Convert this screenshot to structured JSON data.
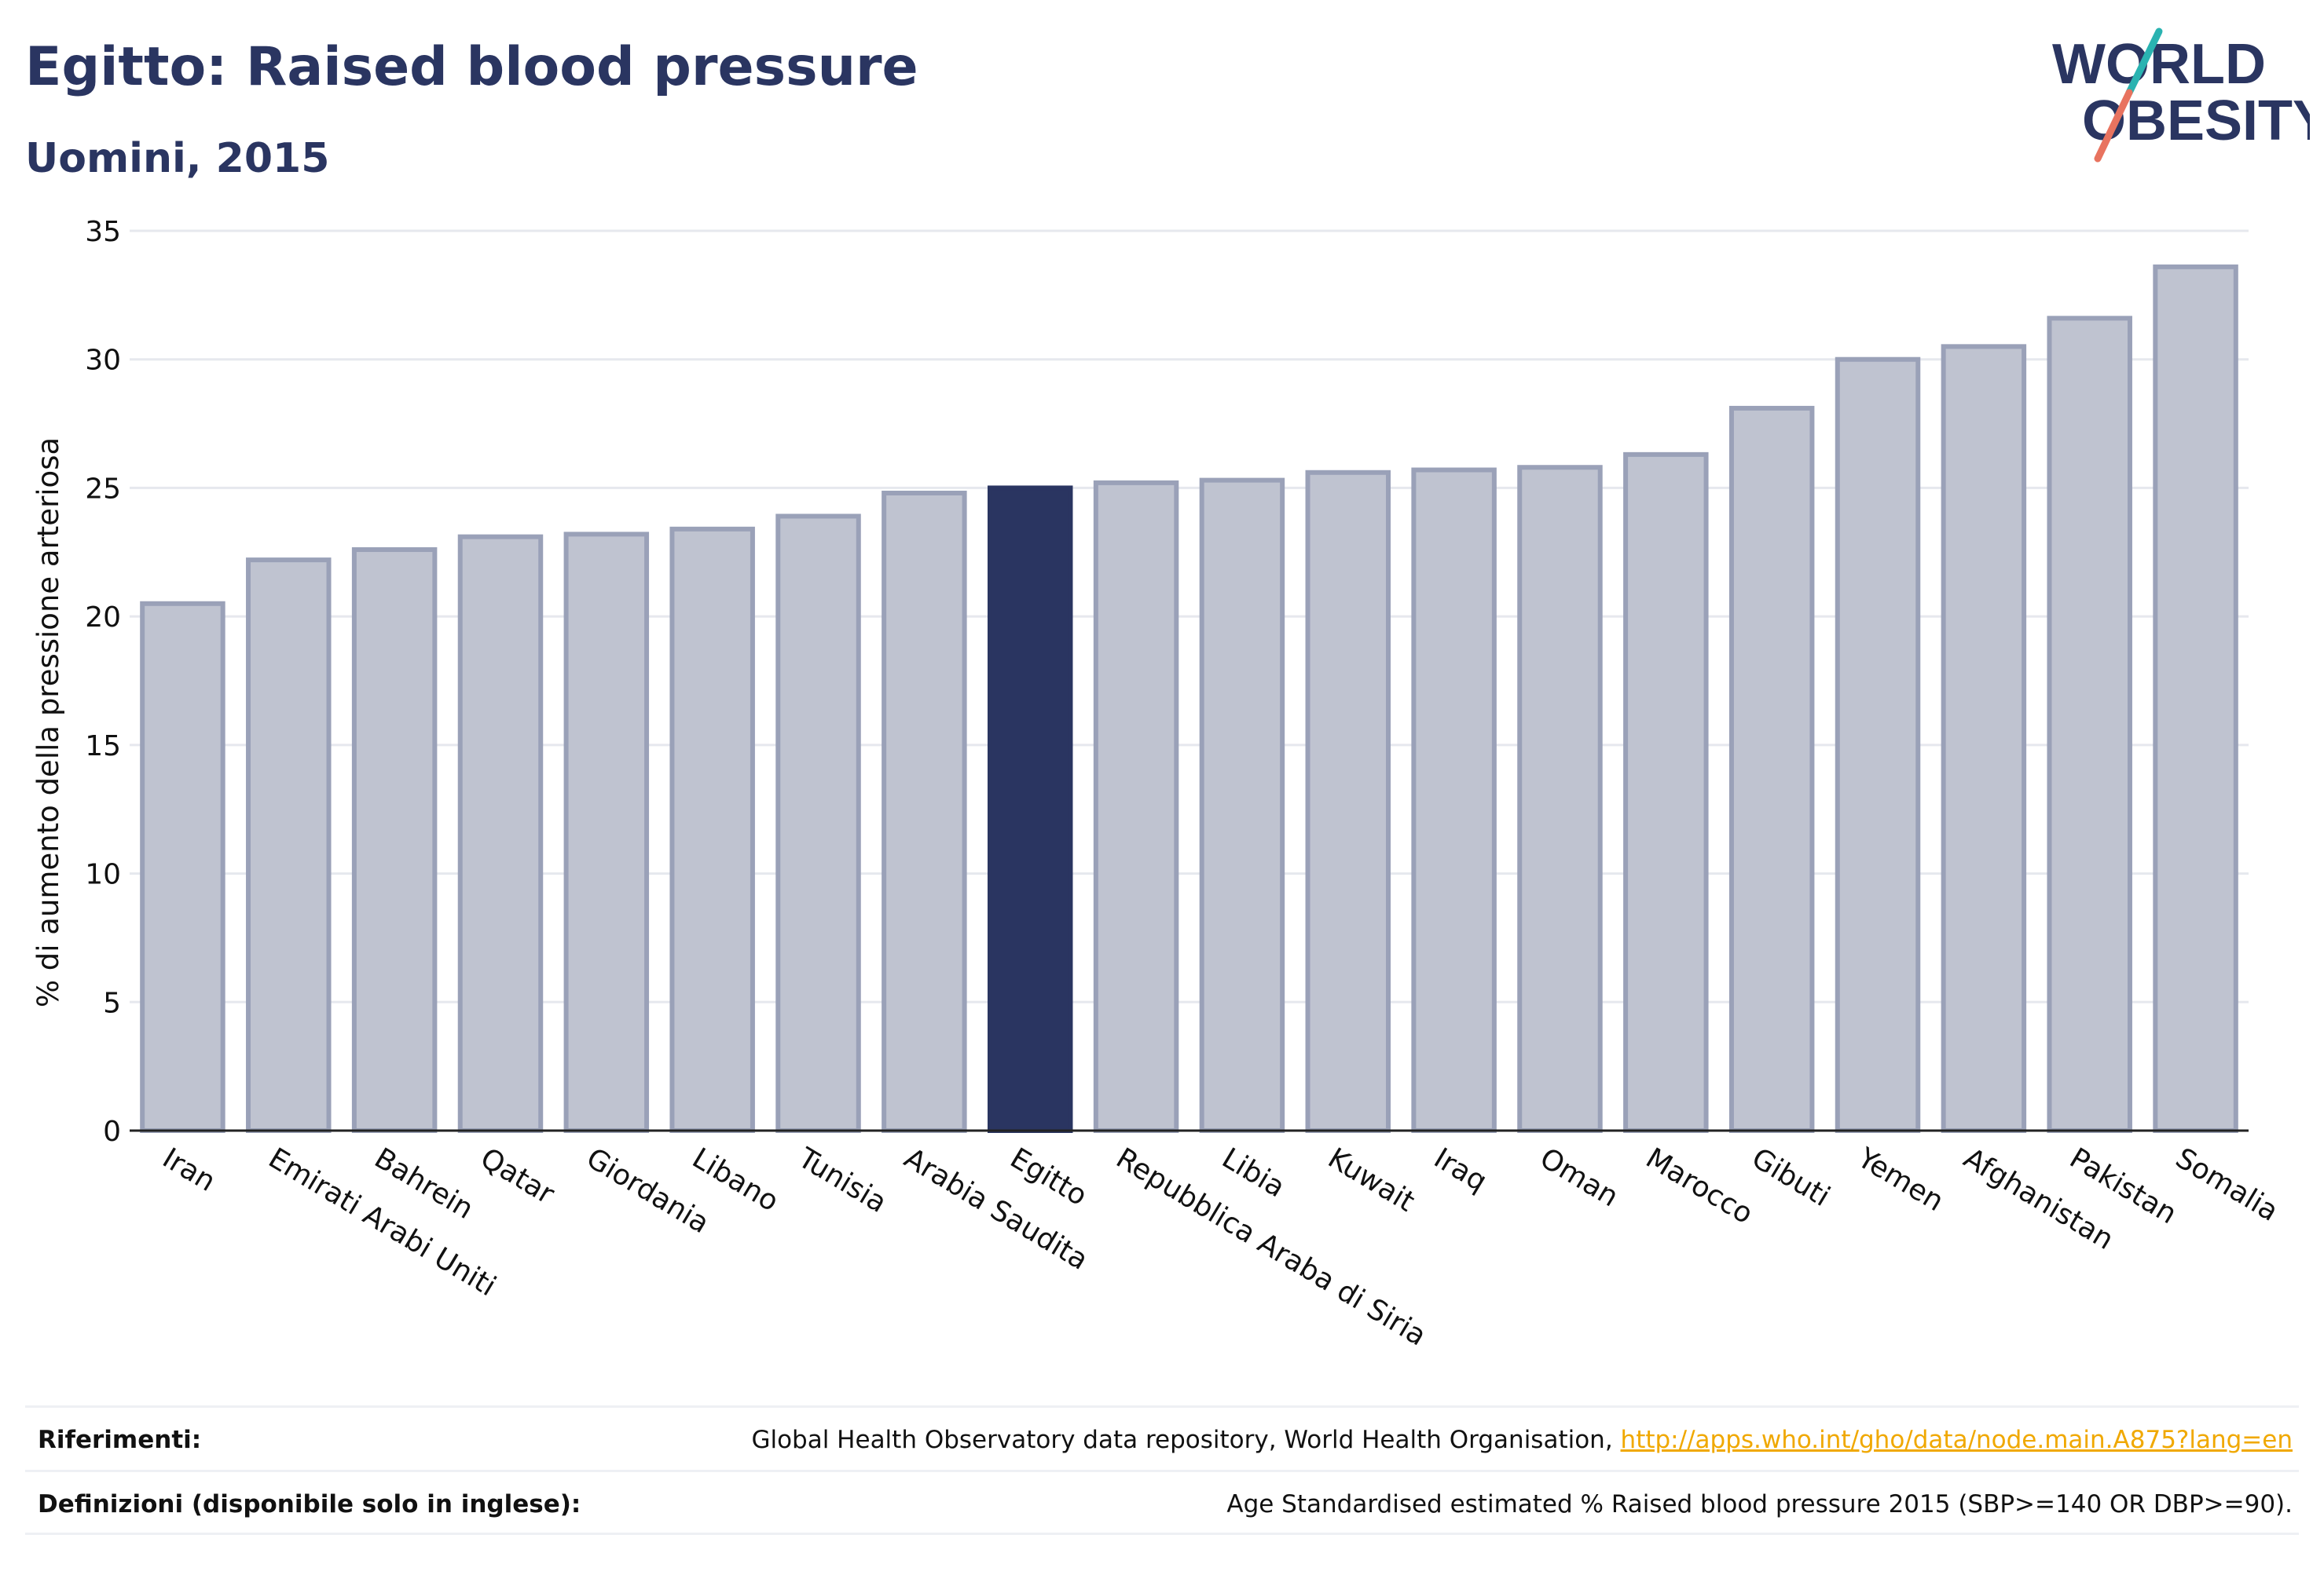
{
  "title": "Egitto: Raised blood pressure",
  "subtitle": "Uomini, 2015",
  "logo": {
    "line1": "WORLD",
    "line2": "OBESITY"
  },
  "colors": {
    "bar": "#bfc3d0",
    "bar_border": "#9aa1b8",
    "highlight": "#2a3561",
    "text": "#2a3561",
    "grid": "#e6e8ee",
    "link": "#f0a800"
  },
  "chart_data": {
    "type": "bar",
    "ylabel": "% di aumento della pressione arteriosa",
    "xlabel": "",
    "ylim": [
      0,
      35
    ],
    "yticks": [
      0,
      5,
      10,
      15,
      20,
      25,
      30,
      35
    ],
    "grid": true,
    "highlight_category": "Egitto",
    "categories": [
      "Iran",
      "Emirati Arabi Uniti",
      "Bahrein",
      "Qatar",
      "Giordania",
      "Libano",
      "Tunisia",
      "Arabia Saudita",
      "Egitto",
      "Repubblica Araba di Siria",
      "Libia",
      "Kuwait",
      "Iraq",
      "Oman",
      "Marocco",
      "Gibuti",
      "Yemen",
      "Afghanistan",
      "Pakistan",
      "Somalia"
    ],
    "values": [
      20.5,
      22.2,
      22.6,
      23.1,
      23.2,
      23.4,
      23.9,
      24.8,
      25.0,
      25.2,
      25.3,
      25.6,
      25.7,
      25.8,
      26.3,
      28.1,
      30.0,
      30.5,
      31.6,
      33.6
    ]
  },
  "footer": {
    "references_label": "Riferimenti:",
    "references_text": "Global Health Observatory data repository, World Health Organisation, ",
    "references_link": "http://apps.who.int/gho/data/node.main.A875?lang=en",
    "definitions_label": "Definizioni (disponibile solo in inglese):",
    "definitions_text": "Age Standardised estimated % Raised blood pressure 2015 (SBP>=140 OR DBP>=90)."
  }
}
